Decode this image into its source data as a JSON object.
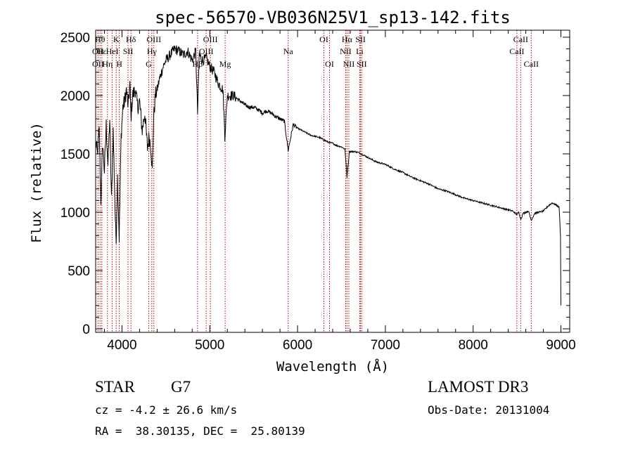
{
  "chart_data": {
    "type": "line",
    "title": "spec-56570-VB036N25V1_sp13-142.fits",
    "xlabel": "Wavelength (Å)",
    "ylabel": "Flux (relative)",
    "xlim": [
      3700,
      9100
    ],
    "ylim": [
      -30,
      2560
    ],
    "xticks": [
      4000,
      5000,
      6000,
      7000,
      8000,
      9000
    ],
    "yticks": [
      0,
      500,
      1000,
      1500,
      2000,
      2500
    ],
    "xtick_labels": [
      "4000",
      "5000",
      "6000",
      "7000",
      "8000",
      "9000"
    ],
    "ytick_labels": [
      "0",
      "500",
      "1000",
      "1500",
      "2000",
      "2500"
    ],
    "grid": false,
    "series": [
      {
        "name": "flux",
        "x": [
          3700,
          3720,
          3740,
          3760,
          3780,
          3800,
          3820,
          3840,
          3860,
          3880,
          3900,
          3920,
          3933,
          3950,
          3968,
          3990,
          4010,
          4030,
          4050,
          4070,
          4090,
          4102,
          4120,
          4150,
          4180,
          4200,
          4230,
          4260,
          4290,
          4310,
          4330,
          4345,
          4360,
          4380,
          4400,
          4430,
          4470,
          4500,
          4550,
          4600,
          4650,
          4700,
          4750,
          4800,
          4840,
          4861,
          4880,
          4920,
          4960,
          5000,
          5050,
          5100,
          5150,
          5172,
          5200,
          5270,
          5300,
          5350,
          5400,
          5450,
          5500,
          5550,
          5600,
          5650,
          5700,
          5750,
          5800,
          5850,
          5893,
          5950,
          6000,
          6050,
          6100,
          6150,
          6200,
          6250,
          6300,
          6350,
          6400,
          6450,
          6500,
          6540,
          6563,
          6590,
          6650,
          6700,
          6750,
          6800,
          6850,
          6900,
          6950,
          7000,
          7100,
          7200,
          7300,
          7400,
          7500,
          7600,
          7700,
          7800,
          7900,
          8000,
          8100,
          8200,
          8300,
          8400,
          8450,
          8498,
          8520,
          8542,
          8570,
          8600,
          8630,
          8662,
          8700,
          8750,
          8800,
          8850,
          8900,
          8950,
          8980,
          8995,
          9000
        ],
        "values": [
          1600,
          1500,
          1700,
          1100,
          1600,
          1350,
          1750,
          1400,
          1800,
          1100,
          1700,
          1050,
          740,
          1300,
          780,
          1650,
          1900,
          1950,
          2050,
          1900,
          2100,
          1800,
          2000,
          2050,
          1900,
          1950,
          1700,
          1850,
          1550,
          1650,
          1550,
          1350,
          1800,
          2000,
          2050,
          2150,
          2250,
          2300,
          2350,
          2400,
          2380,
          2350,
          2380,
          2300,
          2380,
          1850,
          2350,
          2300,
          2320,
          2250,
          2200,
          2100,
          2050,
          1650,
          2000,
          2000,
          1980,
          1950,
          1920,
          1900,
          1900,
          1880,
          1850,
          1870,
          1850,
          1820,
          1800,
          1780,
          1530,
          1750,
          1720,
          1700,
          1680,
          1660,
          1650,
          1640,
          1620,
          1600,
          1590,
          1570,
          1560,
          1540,
          1300,
          1520,
          1520,
          1510,
          1490,
          1470,
          1450,
          1430,
          1420,
          1410,
          1370,
          1340,
          1300,
          1270,
          1240,
          1200,
          1180,
          1150,
          1120,
          1100,
          1080,
          1060,
          1040,
          1020,
          1010,
          980,
          1000,
          940,
          990,
          1000,
          1010,
          930,
          990,
          1000,
          1010,
          1050,
          1080,
          1060,
          1040,
          800,
          200
        ]
      }
    ],
    "line_markers": [
      {
        "label": "OII",
        "wavelength": 3727,
        "row": 2
      },
      {
        "label": "Hθ",
        "wavelength": 3750,
        "row": 0
      },
      {
        "label": "OII",
        "wavelength": 3727,
        "row": 1
      },
      {
        "label": "Hε",
        "wavelength": 3770,
        "row": 1
      },
      {
        "label": "Hη",
        "wavelength": 3835,
        "row": 2
      },
      {
        "label": "K",
        "wavelength": 3934,
        "row": 0
      },
      {
        "label": "HeI",
        "wavelength": 3889,
        "row": 1
      },
      {
        "label": "H",
        "wavelength": 3969,
        "row": 2
      },
      {
        "label": "SII",
        "wavelength": 4069,
        "row": 1
      },
      {
        "label": "Hδ",
        "wavelength": 4102,
        "row": 0
      },
      {
        "label": "OIII",
        "wavelength": 4363,
        "row": 0
      },
      {
        "label": "Hγ",
        "wavelength": 4340,
        "row": 1
      },
      {
        "label": "G",
        "wavelength": 4305,
        "row": 2
      },
      {
        "label": "Hβ",
        "wavelength": 4861,
        "row": 2
      },
      {
        "label": "OIII",
        "wavelength": 4959,
        "row": 1
      },
      {
        "label": "OIII",
        "wavelength": 5007,
        "row": 0
      },
      {
        "label": "Mg",
        "wavelength": 5175,
        "row": 2
      },
      {
        "label": "Na",
        "wavelength": 5893,
        "row": 1
      },
      {
        "label": "OI",
        "wavelength": 6300,
        "row": 0
      },
      {
        "label": "OI",
        "wavelength": 6364,
        "row": 2
      },
      {
        "label": "NII",
        "wavelength": 6548,
        "row": 1
      },
      {
        "label": "NII",
        "wavelength": 6584,
        "row": 2
      },
      {
        "label": "Hα",
        "wavelength": 6563,
        "row": 0
      },
      {
        "label": "SII",
        "wavelength": 6717,
        "row": 0
      },
      {
        "label": "Li",
        "wavelength": 6708,
        "row": 1
      },
      {
        "label": "SII",
        "wavelength": 6731,
        "row": 2
      },
      {
        "label": "CaII",
        "wavelength": 8542,
        "row": 0
      },
      {
        "label": "CaII",
        "wavelength": 8498,
        "row": 1
      },
      {
        "label": "CaII",
        "wavelength": 8662,
        "row": 2
      }
    ],
    "colors": {
      "spectrum": "#000000",
      "axis": "#000000",
      "marker_line": "#c00000",
      "text": "#000000"
    }
  },
  "info": {
    "object_class": "STAR",
    "subclass": "G7",
    "survey": "LAMOST DR3",
    "redshift": "cz = -4.2 ± 26.6 km/s",
    "obs_date": "Obs-Date: 20131004",
    "coords": "RA =  38.30135, DEC =  25.80139"
  }
}
